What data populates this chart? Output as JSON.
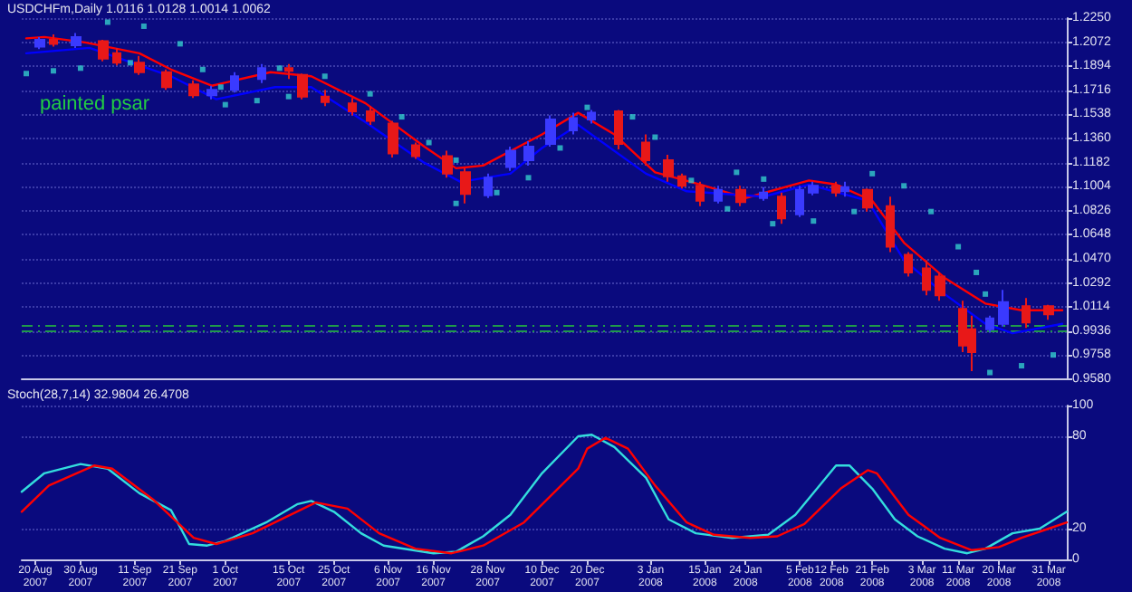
{
  "chart_data": [
    {
      "type": "candlestick",
      "title": "USDCHFm,Daily 1.0116 1.0128 1.0014 1.0062",
      "annotations": [
        "painted psar"
      ],
      "xlim": [
        "2007-08-17",
        "2008-04-04"
      ],
      "ylim": [
        0.958,
        1.225
      ],
      "yticks": [
        {
          "value": 1.225,
          "label": "1.2250"
        },
        {
          "value": 1.2072,
          "label": "1.2072"
        },
        {
          "value": 1.1894,
          "label": "1.1894"
        },
        {
          "value": 1.1716,
          "label": "1.1716"
        },
        {
          "value": 1.1538,
          "label": "1.1538"
        },
        {
          "value": 1.136,
          "label": "1.1360"
        },
        {
          "value": 1.1182,
          "label": "1.1182"
        },
        {
          "value": 1.1004,
          "label": "1.1004"
        },
        {
          "value": 1.0826,
          "label": "1.0826"
        },
        {
          "value": 1.0648,
          "label": "1.0648"
        },
        {
          "value": 1.047,
          "label": "1.0470"
        },
        {
          "value": 1.0292,
          "label": "1.0292"
        },
        {
          "value": 1.0114,
          "label": "1.0114"
        },
        {
          "value": 0.9936,
          "label": "0.9936"
        },
        {
          "value": 0.9758,
          "label": "0.9758"
        },
        {
          "value": 0.958,
          "label": "0.9580"
        }
      ],
      "tick_labels": "y",
      "grid": "y",
      "ref_lines": [
        {
          "axis": "y",
          "value": 0.9975,
          "color": "#1f9a4a",
          "line_style": "dashed"
        },
        {
          "axis": "y",
          "value": 0.9935,
          "color": "#1f9a4a",
          "line_style": "dashed"
        }
      ],
      "series": [
        {
          "x": [
            "2007-08-21",
            "2007-08-24",
            "2007-08-29",
            "2007-09-04",
            "2007-09-07",
            "2007-09-12",
            "2007-09-18",
            "2007-09-24",
            "2007-09-28",
            "2007-10-03",
            "2007-10-09",
            "2007-10-15",
            "2007-10-18",
            "2007-10-23",
            "2007-10-29",
            "2007-11-02",
            "2007-11-07",
            "2007-11-12",
            "2007-11-19",
            "2007-11-23",
            "2007-11-28",
            "2007-12-03",
            "2007-12-07",
            "2007-12-12",
            "2007-12-17",
            "2007-12-21",
            "2007-12-27",
            "2008-01-02",
            "2008-01-07",
            "2008-01-10",
            "2008-01-14",
            "2008-01-18",
            "2008-01-23",
            "2008-01-28",
            "2008-02-01",
            "2008-02-05",
            "2008-02-08",
            "2008-02-13",
            "2008-02-15",
            "2008-02-20",
            "2008-02-25",
            "2008-02-29",
            "2008-03-04",
            "2008-03-07",
            "2008-03-12",
            "2008-03-14",
            "2008-03-18",
            "2008-03-21",
            "2008-03-26",
            "2008-03-31"
          ],
          "ohlc": [
            [
              1.204,
              1.211,
              1.202,
              1.209
            ],
            [
              1.209,
              1.213,
              1.204,
              1.206
            ],
            [
              1.205,
              1.214,
              1.203,
              1.211
            ],
            [
              1.208,
              1.209,
              1.193,
              1.195
            ],
            [
              1.199,
              1.203,
              1.19,
              1.192
            ],
            [
              1.192,
              1.197,
              1.183,
              1.185
            ],
            [
              1.185,
              1.187,
              1.172,
              1.174
            ],
            [
              1.176,
              1.179,
              1.166,
              1.168
            ],
            [
              1.168,
              1.175,
              1.165,
              1.172
            ],
            [
              1.172,
              1.185,
              1.17,
              1.182
            ],
            [
              1.18,
              1.191,
              1.177,
              1.188
            ],
            [
              1.188,
              1.191,
              1.18,
              1.186
            ],
            [
              1.183,
              1.184,
              1.165,
              1.167
            ],
            [
              1.167,
              1.172,
              1.16,
              1.163
            ],
            [
              1.162,
              1.166,
              1.153,
              1.156
            ],
            [
              1.156,
              1.16,
              1.146,
              1.149
            ],
            [
              1.147,
              1.149,
              1.122,
              1.125
            ],
            [
              1.131,
              1.133,
              1.121,
              1.123
            ],
            [
              1.123,
              1.127,
              1.107,
              1.11
            ],
            [
              1.111,
              1.114,
              1.088,
              1.095
            ],
            [
              1.094,
              1.11,
              1.092,
              1.107
            ],
            [
              1.115,
              1.13,
              1.112,
              1.127
            ],
            [
              1.12,
              1.134,
              1.116,
              1.13
            ],
            [
              1.132,
              1.153,
              1.13,
              1.15
            ],
            [
              1.142,
              1.155,
              1.139,
              1.151
            ],
            [
              1.15,
              1.157,
              1.147,
              1.155
            ],
            [
              1.156,
              1.157,
              1.128,
              1.132
            ],
            [
              1.133,
              1.139,
              1.116,
              1.12
            ],
            [
              1.12,
              1.124,
              1.104,
              1.108
            ],
            [
              1.108,
              1.11,
              1.099,
              1.101
            ],
            [
              1.101,
              1.104,
              1.086,
              1.09
            ],
            [
              1.09,
              1.101,
              1.088,
              1.098
            ],
            [
              1.098,
              1.101,
              1.086,
              1.089
            ],
            [
              1.092,
              1.1,
              1.09,
              1.096
            ],
            [
              1.093,
              1.096,
              1.073,
              1.077
            ],
            [
              1.08,
              1.101,
              1.078,
              1.098
            ],
            [
              1.096,
              1.104,
              1.094,
              1.101
            ],
            [
              1.101,
              1.104,
              1.093,
              1.096
            ],
            [
              1.097,
              1.104,
              1.093,
              1.1
            ],
            [
              1.098,
              1.099,
              1.082,
              1.085
            ],
            [
              1.086,
              1.093,
              1.052,
              1.056
            ],
            [
              1.05,
              1.052,
              1.034,
              1.037
            ],
            [
              1.04,
              1.046,
              1.02,
              1.024
            ],
            [
              1.034,
              1.037,
              1.016,
              1.02
            ],
            [
              1.01,
              1.016,
              0.978,
              0.983
            ],
            [
              0.995,
              1.005,
              0.964,
              0.978
            ],
            [
              0.995,
              1.005,
              0.993,
              1.003
            ],
            [
              0.999,
              1.024,
              0.997,
              1.015
            ],
            [
              1.012,
              1.018,
              0.996,
              1
            ],
            [
              1.012,
              1.013,
              1.002,
              1.006
            ]
          ],
          "colors": [
            "#3a3aff",
            "#e81818",
            "#3a3aff",
            "#e81818",
            "#e81818",
            "#e81818",
            "#e81818",
            "#e81818",
            "#3a3aff",
            "#3a3aff",
            "#3a3aff",
            "#e81818",
            "#e81818",
            "#e81818",
            "#e81818",
            "#e81818",
            "#e81818",
            "#e81818",
            "#e81818",
            "#e81818",
            "#3a3aff",
            "#3a3aff",
            "#3a3aff",
            "#3a3aff",
            "#3a3aff",
            "#3a3aff",
            "#e81818",
            "#e81818",
            "#e81818",
            "#e81818",
            "#e81818",
            "#3a3aff",
            "#e81818",
            "#3a3aff",
            "#e81818",
            "#3a3aff",
            "#3a3aff",
            "#e81818",
            "#3a3aff",
            "#e81818",
            "#e81818",
            "#e81818",
            "#e81818",
            "#e81818",
            "#e81818",
            "#e81818",
            "#3a3aff",
            "#3a3aff",
            "#e81818",
            "#e81818"
          ]
        },
        {
          "type": "line",
          "color": "#ff0000",
          "marker": "none",
          "x": [
            "2007-08-18",
            "2007-08-22",
            "2007-08-31",
            "2007-09-12",
            "2007-09-19",
            "2007-09-28",
            "2007-10-11",
            "2007-10-20",
            "2007-11-01",
            "2007-11-14",
            "2007-11-21",
            "2007-11-27",
            "2007-12-10",
            "2007-12-18",
            "2007-12-26",
            "2008-01-04",
            "2008-01-14",
            "2008-01-24",
            "2008-02-07",
            "2008-02-13",
            "2008-02-21",
            "2008-02-28",
            "2008-03-08",
            "2008-03-17",
            "2008-03-25",
            "2008-04-03"
          ],
          "values": [
            1.21,
            1.211,
            1.207,
            1.199,
            1.187,
            1.175,
            1.185,
            1.182,
            1.162,
            1.13,
            1.114,
            1.116,
            1.139,
            1.155,
            1.139,
            1.111,
            1.102,
            1.092,
            1.105,
            1.102,
            1.09,
            1.059,
            1.033,
            1.014,
            1.009,
            1.009
          ]
        },
        {
          "type": "line",
          "color": "#0000ff",
          "marker": "none",
          "x": [
            "2007-08-18",
            "2007-09-01",
            "2007-09-19",
            "2007-09-29",
            "2007-10-12",
            "2007-10-20",
            "2007-11-01",
            "2007-11-14",
            "2007-11-22",
            "2007-12-03",
            "2007-12-10",
            "2007-12-18",
            "2008-01-02",
            "2008-01-11",
            "2008-01-28",
            "2008-02-07",
            "2008-02-20",
            "2008-02-28",
            "2008-03-08",
            "2008-03-17",
            "2008-03-23",
            "2008-04-03"
          ],
          "values": [
            1.199,
            1.203,
            1.182,
            1.165,
            1.174,
            1.174,
            1.148,
            1.118,
            1.104,
            1.11,
            1.129,
            1.146,
            1.11,
            1.097,
            1.093,
            1.102,
            1.09,
            1.046,
            1.021,
            0.999,
            0.992,
            0.999
          ]
        },
        {
          "type": "scatter",
          "color": "#33cccc",
          "marker": "square",
          "x": [
            "2007-08-18",
            "2007-08-24",
            "2007-08-30",
            "2007-09-05",
            "2007-09-10",
            "2007-09-13",
            "2007-09-21",
            "2007-09-26",
            "2007-09-30",
            "2007-10-01",
            "2007-10-08",
            "2007-10-13",
            "2007-10-15",
            "2007-10-23",
            "2007-11-02",
            "2007-11-09",
            "2007-11-15",
            "2007-11-21",
            "2007-11-21",
            "2007-11-30",
            "2007-12-07",
            "2007-12-14",
            "2007-12-20",
            "2007-12-30",
            "2008-01-04",
            "2008-01-12",
            "2008-01-20",
            "2008-01-22",
            "2008-01-28",
            "2008-01-30",
            "2008-02-08",
            "2008-02-17",
            "2008-02-21",
            "2008-02-28",
            "2008-03-05",
            "2008-03-11",
            "2008-03-15",
            "2008-03-17",
            "2008-03-18",
            "2008-03-25",
            "2008-04-01"
          ],
          "values": [
            1.184,
            1.186,
            1.188,
            1.222,
            1.192,
            1.219,
            1.206,
            1.187,
            1.174,
            1.161,
            1.164,
            1.188,
            1.167,
            1.182,
            1.169,
            1.152,
            1.133,
            1.12,
            1.088,
            1.096,
            1.107,
            1.129,
            1.159,
            1.152,
            1.137,
            1.105,
            1.084,
            1.111,
            1.106,
            1.073,
            1.075,
            1.082,
            1.11,
            1.101,
            1.082,
            1.056,
            1.037,
            1.021,
            0.963,
            0.968,
            0.976
          ]
        }
      ]
    },
    {
      "type": "line",
      "title": "Stoch(28,7,14) 32.9804 26.4708",
      "xlim": [
        "2007-08-17",
        "2008-04-04"
      ],
      "ylim": [
        0,
        100
      ],
      "yticks": [
        0,
        20,
        80,
        100
      ],
      "grid": "y",
      "xticks": [
        {
          "value": "2007-08-20",
          "label": "20 Aug 2007"
        },
        {
          "value": "2007-08-30",
          "label": "30 Aug 2007"
        },
        {
          "value": "2007-09-11",
          "label": "11 Sep 2007"
        },
        {
          "value": "2007-09-21",
          "label": "21 Sep 2007"
        },
        {
          "value": "2007-10-01",
          "label": "1 Oct 2007"
        },
        {
          "value": "2007-10-15",
          "label": "15 Oct 2007"
        },
        {
          "value": "2007-10-25",
          "label": "25 Oct 2007"
        },
        {
          "value": "2007-11-06",
          "label": "6 Nov 2007"
        },
        {
          "value": "2007-11-16",
          "label": "16 Nov 2007"
        },
        {
          "value": "2007-11-28",
          "label": "28 Nov 2007"
        },
        {
          "value": "2007-12-10",
          "label": "10 Dec 2007"
        },
        {
          "value": "2007-12-20",
          "label": "20 Dec 2007"
        },
        {
          "value": "2008-01-03",
          "label": "3 Jan 2008"
        },
        {
          "value": "2008-01-15",
          "label": "15 Jan 2008"
        },
        {
          "value": "2008-01-24",
          "label": "24 Jan 2008"
        },
        {
          "value": "2008-02-05",
          "label": "5 Feb 2008"
        },
        {
          "value": "2008-02-12",
          "label": "12 Feb 2008"
        },
        {
          "value": "2008-02-21",
          "label": "21 Feb 2008"
        },
        {
          "value": "2008-03-03",
          "label": "3 Mar 2008"
        },
        {
          "value": "2008-03-11",
          "label": "11 Mar 2008"
        },
        {
          "value": "2008-03-20",
          "label": "20 Mar 2008"
        },
        {
          "value": "2008-03-31",
          "label": "31 Mar 2008"
        }
      ],
      "series": [
        {
          "color": "#33dddd",
          "x": [
            "2007-08-17",
            "2007-08-22",
            "2007-08-30",
            "2007-09-05",
            "2007-09-12",
            "2007-09-19",
            "2007-09-23",
            "2007-09-27",
            "2007-10-01",
            "2007-10-10",
            "2007-10-17",
            "2007-10-20",
            "2007-10-25",
            "2007-10-31",
            "2007-11-05",
            "2007-11-16",
            "2007-11-21",
            "2007-11-27",
            "2007-12-03",
            "2007-12-10",
            "2007-12-18",
            "2007-12-21",
            "2007-12-26",
            "2008-01-02",
            "2008-01-07",
            "2008-01-13",
            "2008-01-21",
            "2008-01-29",
            "2008-02-04",
            "2008-02-13",
            "2008-02-16",
            "2008-02-21",
            "2008-02-26",
            "2008-03-02",
            "2008-03-08",
            "2008-03-13",
            "2008-03-17",
            "2008-03-23",
            "2008-03-29",
            "2008-04-04"
          ],
          "values": [
            44,
            56,
            62,
            59,
            43,
            32,
            10,
            9,
            12,
            24,
            36,
            38,
            31,
            17,
            9,
            4,
            5,
            15,
            29,
            56,
            80,
            81,
            73,
            53,
            26,
            17,
            14,
            16,
            29,
            61,
            61,
            46,
            26,
            15,
            7,
            4,
            7,
            17,
            20,
            31
          ]
        },
        {
          "color": "#ff0000",
          "x": [
            "2007-08-17",
            "2007-08-23",
            "2007-09-02",
            "2007-09-06",
            "2007-09-15",
            "2007-09-24",
            "2007-09-29",
            "2007-10-07",
            "2007-10-21",
            "2007-10-28",
            "2007-11-04",
            "2007-11-12",
            "2007-11-20",
            "2007-11-27",
            "2007-12-06",
            "2007-12-18",
            "2007-12-20",
            "2007-12-24",
            "2007-12-29",
            "2008-01-04",
            "2008-01-11",
            "2008-01-17",
            "2008-01-25",
            "2008-01-31",
            "2008-02-06",
            "2008-02-14",
            "2008-02-20",
            "2008-02-22",
            "2008-02-29",
            "2008-03-07",
            "2008-03-14",
            "2008-03-20",
            "2008-03-25",
            "2008-03-31",
            "2008-04-04"
          ],
          "values": [
            31,
            48,
            61,
            59,
            39,
            14,
            10,
            17,
            37,
            33,
            17,
            7,
            4,
            9,
            24,
            59,
            72,
            79,
            72,
            48,
            24,
            16,
            14,
            15,
            23,
            46,
            58,
            56,
            29,
            14,
            6,
            8,
            14,
            20,
            24
          ]
        }
      ]
    }
  ]
}
